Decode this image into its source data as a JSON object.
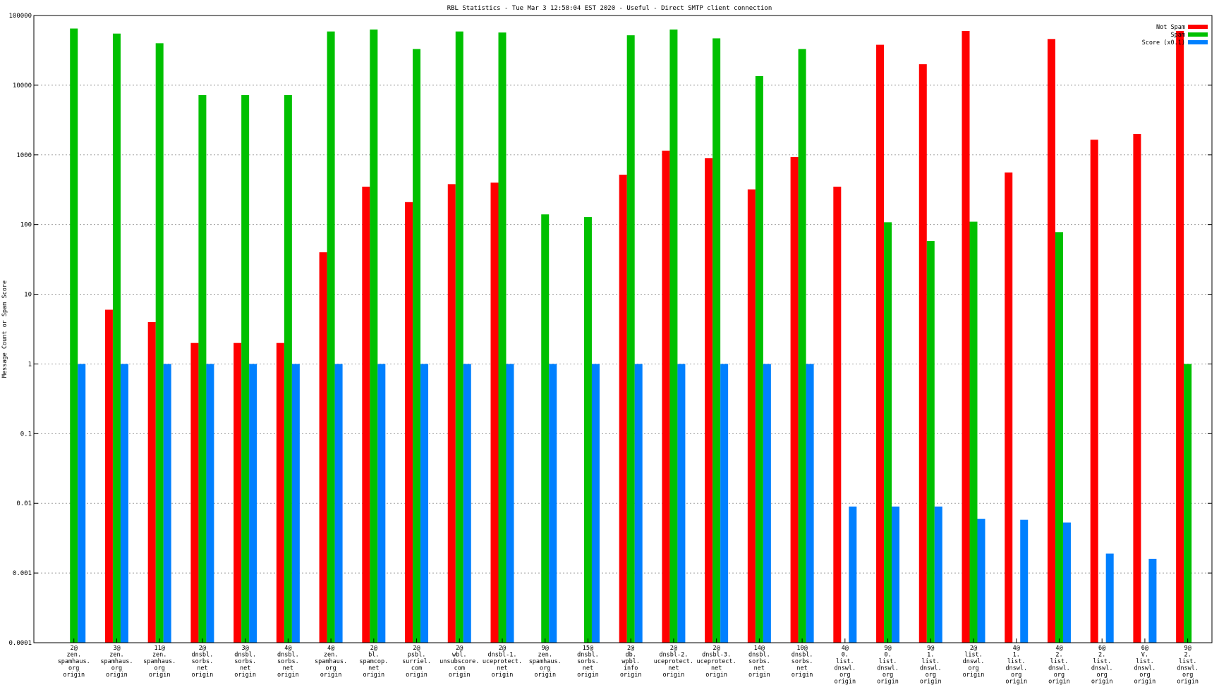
{
  "chart_data": {
    "type": "bar",
    "title": "RBL Statistics - Tue Mar  3 12:58:04 EST 2020 - Useful - Direct SMTP client connection",
    "ylabel": "Message Count or Spam Score",
    "xlabel": "",
    "yscale": "log",
    "ylim": [
      0.0001,
      100000
    ],
    "grid": true,
    "legend_position": "top-right",
    "y_ticks": [
      "0.0001",
      "0.001",
      "0.01",
      "0.1",
      "1",
      "10",
      "100",
      "1000",
      "10000",
      "100000"
    ],
    "categories": [
      [
        "2@",
        "zen.",
        "spamhaus.",
        "org",
        "origin"
      ],
      [
        "3@",
        "zen.",
        "spamhaus.",
        "org",
        "origin"
      ],
      [
        "11@",
        "zen.",
        "spamhaus.",
        "org",
        "origin"
      ],
      [
        "2@",
        "dnsbl.",
        "sorbs.",
        "net",
        "origin"
      ],
      [
        "3@",
        "dnsbl.",
        "sorbs.",
        "net",
        "origin"
      ],
      [
        "4@",
        "dnsbl.",
        "sorbs.",
        "net",
        "origin"
      ],
      [
        "4@",
        "zen.",
        "spamhaus.",
        "org",
        "origin"
      ],
      [
        "2@",
        "bl.",
        "spamcop.",
        "net",
        "origin"
      ],
      [
        "2@",
        "psbl.",
        "surriel.",
        "com",
        "origin"
      ],
      [
        "2@",
        "wbl.",
        "unsubscore.",
        "com",
        "origin"
      ],
      [
        "2@",
        "dnsbl-1.",
        "uceprotect.",
        "net",
        "origin"
      ],
      [
        "9@",
        "zen.",
        "spamhaus.",
        "org",
        "origin"
      ],
      [
        "15@",
        "dnsbl.",
        "sorbs.",
        "net",
        "origin"
      ],
      [
        "2@",
        "db.",
        "wpbl.",
        "info",
        "origin"
      ],
      [
        "2@",
        "dnsbl-2.",
        "uceprotect.",
        "net",
        "origin"
      ],
      [
        "2@",
        "dnsbl-3.",
        "uceprotect.",
        "net",
        "origin"
      ],
      [
        "14@",
        "dnsbl.",
        "sorbs.",
        "net",
        "origin"
      ],
      [
        "10@",
        "dnsbl.",
        "sorbs.",
        "net",
        "origin"
      ],
      [
        "4@",
        "0.",
        "list.",
        "dnswl.",
        "org",
        "origin"
      ],
      [
        "9@",
        "0.",
        "list.",
        "dnswl.",
        "org",
        "origin"
      ],
      [
        "9@",
        "1.",
        "list.",
        "dnswl.",
        "org",
        "origin"
      ],
      [
        "2@",
        "list.",
        "dnswl.",
        "org",
        "origin"
      ],
      [
        "4@",
        "1.",
        "list.",
        "dnswl.",
        "org",
        "origin"
      ],
      [
        "4@",
        "2.",
        "list.",
        "dnswl.",
        "org",
        "origin"
      ],
      [
        "6@",
        "2.",
        "list.",
        "dnswl.",
        "org",
        "origin"
      ],
      [
        "6@",
        "V.",
        "list.",
        "dnswl.",
        "org",
        "origin"
      ],
      [
        "9@",
        "2.",
        "list.",
        "dnswl.",
        "org",
        "origin"
      ]
    ],
    "series": [
      {
        "name": "Not Spam",
        "color": "#ff0000",
        "values": [
          null,
          6,
          4,
          2,
          2,
          2,
          40,
          350,
          210,
          380,
          400,
          null,
          null,
          520,
          1150,
          900,
          320,
          930,
          350,
          38000,
          20000,
          60000,
          560,
          46000,
          1650,
          2000,
          60000
        ]
      },
      {
        "name": "Spam",
        "color": "#00c000",
        "values": [
          65000,
          55000,
          40000,
          7200,
          7200,
          7200,
          59000,
          63000,
          33000,
          59000,
          57000,
          140,
          128,
          52000,
          63000,
          47000,
          13500,
          33000,
          null,
          108,
          58,
          110,
          null,
          78,
          null,
          null,
          1
        ]
      },
      {
        "name": "Score (x0.1)",
        "color": "#0080ff",
        "values": [
          1,
          1,
          1,
          1,
          1,
          1,
          1,
          1,
          1,
          1,
          1,
          1,
          1,
          1,
          1,
          1,
          1,
          1,
          0.009,
          0.009,
          0.009,
          0.006,
          0.0058,
          0.0053,
          0.0019,
          0.0016,
          null
        ]
      }
    ]
  }
}
